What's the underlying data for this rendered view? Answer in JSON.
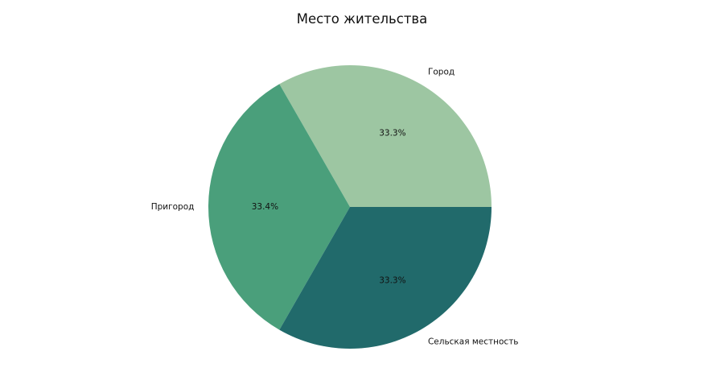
{
  "chart_data": {
    "type": "pie",
    "title": "Место жительства",
    "slices": [
      {
        "label": "Город",
        "value": 33.3,
        "pct_label": "33.3%",
        "color": "#9dc6a2"
      },
      {
        "label": "Пригород",
        "value": 33.4,
        "pct_label": "33.4%",
        "color": "#4a9f7b"
      },
      {
        "label": "Сельская местность",
        "value": 33.3,
        "pct_label": "33.3%",
        "color": "#216a6b"
      }
    ],
    "start_angle_deg": 0,
    "direction": "counterclockwise"
  }
}
